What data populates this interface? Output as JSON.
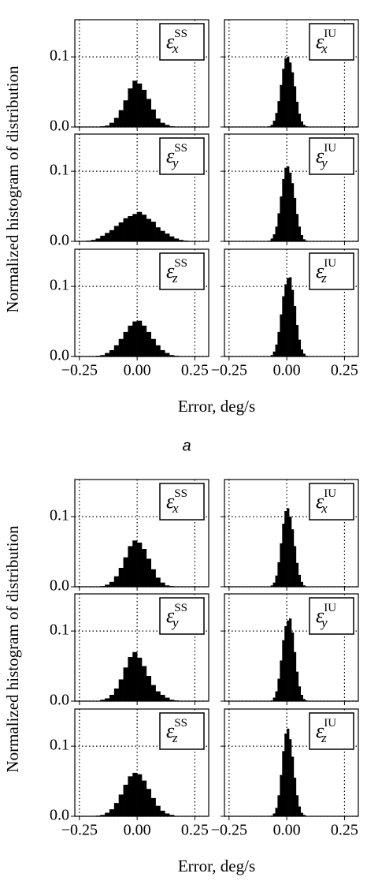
{
  "chart_data": [
    {
      "type": "histogram",
      "caption": "a",
      "xlabel": "Error, deg/s",
      "ylabel": "Normalized histogram of distribution",
      "xlim": [
        -0.27,
        0.31
      ],
      "ylim": [
        0,
        0.153
      ],
      "xticks": [
        {
          "value": -0.25,
          "label": "−0.25"
        },
        {
          "value": 0,
          "label": "0.00"
        },
        {
          "value": 0.25,
          "label": "0.25"
        }
      ],
      "yticks": [
        {
          "value": 0,
          "label": "0.0"
        },
        {
          "value": 0.1,
          "label": "0.1"
        }
      ],
      "grid": true,
      "color": "#000000",
      "panels": [
        {
          "label": {
            "base": "ε",
            "sub": "x",
            "sup": "SS"
          },
          "bins": [
            -0.24,
            -0.22,
            -0.2,
            -0.18,
            -0.16,
            -0.14,
            -0.12,
            -0.1,
            -0.08,
            -0.06,
            -0.04,
            -0.02,
            0,
            0.02,
            0.04,
            0.06,
            0.08,
            0.1,
            0.12,
            0.14,
            0.16,
            0.18,
            0.2,
            0.22,
            0.24
          ],
          "values": [
            0,
            0,
            0,
            0.0005,
            0.001,
            0.002,
            0.006,
            0.013,
            0.024,
            0.038,
            0.055,
            0.066,
            0.062,
            0.053,
            0.04,
            0.025,
            0.012,
            0.006,
            0.003,
            0.001,
            0.0005,
            0,
            0,
            0
          ]
        },
        {
          "label": {
            "base": "ε",
            "sub": "x",
            "sup": "IU"
          },
          "bins": [
            -0.1,
            -0.09,
            -0.08,
            -0.07,
            -0.06,
            -0.05,
            -0.04,
            -0.03,
            -0.02,
            -0.01,
            0,
            0.01,
            0.02,
            0.03,
            0.04,
            0.05,
            0.06,
            0.07,
            0.08,
            0.09,
            0.1
          ],
          "values": [
            0,
            0.0003,
            0.001,
            0.003,
            0.009,
            0.02,
            0.037,
            0.06,
            0.083,
            0.098,
            0.1,
            0.092,
            0.078,
            0.058,
            0.036,
            0.019,
            0.008,
            0.003,
            0.001,
            0.0003
          ]
        },
        {
          "label": {
            "base": "ε",
            "sub": "y",
            "sup": "SS"
          },
          "bins": [
            -0.24,
            -0.22,
            -0.2,
            -0.18,
            -0.16,
            -0.14,
            -0.12,
            -0.1,
            -0.08,
            -0.06,
            -0.04,
            -0.02,
            0,
            0.02,
            0.04,
            0.06,
            0.08,
            0.1,
            0.12,
            0.14,
            0.16,
            0.18,
            0.2,
            0.22,
            0.24
          ],
          "values": [
            0.0005,
            0.001,
            0.002,
            0.004,
            0.008,
            0.012,
            0.016,
            0.022,
            0.027,
            0.033,
            0.036,
            0.039,
            0.042,
            0.038,
            0.032,
            0.028,
            0.02,
            0.015,
            0.011,
            0.007,
            0.004,
            0.002,
            0.001,
            0.0005
          ]
        },
        {
          "label": {
            "base": "ε",
            "sub": "y",
            "sup": "IU"
          },
          "bins": [
            -0.1,
            -0.09,
            -0.08,
            -0.07,
            -0.06,
            -0.05,
            -0.04,
            -0.03,
            -0.02,
            -0.01,
            0,
            0.01,
            0.02,
            0.03,
            0.04,
            0.05,
            0.06,
            0.07,
            0.08,
            0.09,
            0.1
          ],
          "values": [
            0,
            0.0003,
            0.001,
            0.004,
            0.01,
            0.021,
            0.04,
            0.064,
            0.089,
            0.105,
            0.107,
            0.098,
            0.083,
            0.062,
            0.039,
            0.021,
            0.009,
            0.003,
            0.001,
            0.0003
          ]
        },
        {
          "label": {
            "base": "ε",
            "sub": "z",
            "sup": "SS"
          },
          "bins": [
            -0.24,
            -0.22,
            -0.2,
            -0.18,
            -0.16,
            -0.14,
            -0.12,
            -0.1,
            -0.08,
            -0.06,
            -0.04,
            -0.02,
            0,
            0.02,
            0.04,
            0.06,
            0.08,
            0.1,
            0.12,
            0.14,
            0.16,
            0.18,
            0.2,
            0.22,
            0.24
          ],
          "values": [
            0,
            0,
            0.0003,
            0.001,
            0.002,
            0.005,
            0.009,
            0.016,
            0.025,
            0.035,
            0.044,
            0.05,
            0.051,
            0.044,
            0.035,
            0.025,
            0.016,
            0.009,
            0.005,
            0.002,
            0.001,
            0.0003,
            0,
            0
          ]
        },
        {
          "label": {
            "base": "ε",
            "sub": "z",
            "sup": "IU"
          },
          "bins": [
            -0.1,
            -0.09,
            -0.08,
            -0.07,
            -0.06,
            -0.05,
            -0.04,
            -0.03,
            -0.02,
            -0.01,
            0,
            0.01,
            0.02,
            0.03,
            0.04,
            0.05,
            0.06,
            0.07,
            0.08,
            0.09,
            0.1
          ],
          "values": [
            0,
            0,
            0.0005,
            0.002,
            0.007,
            0.017,
            0.035,
            0.06,
            0.086,
            0.103,
            0.112,
            0.113,
            0.095,
            0.072,
            0.045,
            0.024,
            0.01,
            0.004,
            0.001,
            0.0003
          ]
        }
      ]
    },
    {
      "type": "histogram",
      "xlabel": "Error, deg/s",
      "ylabel": "Normalized histogram of distribution",
      "xlim": [
        -0.27,
        0.31
      ],
      "ylim": [
        0,
        0.153
      ],
      "xticks": [
        {
          "value": -0.25,
          "label": "−0.25"
        },
        {
          "value": 0,
          "label": "0.00"
        },
        {
          "value": 0.25,
          "label": "0.25"
        }
      ],
      "yticks": [
        {
          "value": 0,
          "label": "0.0"
        },
        {
          "value": 0.1,
          "label": "0.1"
        }
      ],
      "grid": true,
      "color": "#000000",
      "panels": [
        {
          "label": {
            "base": "ε",
            "sub": "x",
            "sup": "SS"
          },
          "bins": [
            -0.24,
            -0.22,
            -0.2,
            -0.18,
            -0.16,
            -0.14,
            -0.12,
            -0.1,
            -0.08,
            -0.06,
            -0.04,
            -0.02,
            0,
            0.02,
            0.04,
            0.06,
            0.08,
            0.1,
            0.12,
            0.14,
            0.16,
            0.18,
            0.2,
            0.22,
            0.24
          ],
          "values": [
            0,
            0,
            0,
            0.0003,
            0.001,
            0.003,
            0.007,
            0.015,
            0.027,
            0.042,
            0.058,
            0.066,
            0.063,
            0.054,
            0.04,
            0.025,
            0.013,
            0.006,
            0.002,
            0.001,
            0,
            0,
            0,
            0
          ]
        },
        {
          "label": {
            "base": "ε",
            "sub": "x",
            "sup": "IU"
          },
          "bins": [
            -0.1,
            -0.09,
            -0.08,
            -0.07,
            -0.06,
            -0.05,
            -0.04,
            -0.03,
            -0.02,
            -0.01,
            0,
            0.01,
            0.02,
            0.03,
            0.04,
            0.05,
            0.06,
            0.07,
            0.08,
            0.09,
            0.1
          ],
          "values": [
            0,
            0,
            0.0005,
            0.002,
            0.006,
            0.016,
            0.035,
            0.062,
            0.09,
            0.108,
            0.112,
            0.1,
            0.082,
            0.058,
            0.034,
            0.017,
            0.007,
            0.002,
            0.0005,
            0
          ]
        },
        {
          "label": {
            "base": "ε",
            "sub": "y",
            "sup": "SS"
          },
          "bins": [
            -0.24,
            -0.22,
            -0.2,
            -0.18,
            -0.16,
            -0.14,
            -0.12,
            -0.1,
            -0.08,
            -0.06,
            -0.04,
            -0.02,
            0,
            0.02,
            0.04,
            0.06,
            0.08,
            0.1,
            0.12,
            0.14,
            0.16,
            0.18,
            0.2,
            0.22,
            0.24
          ],
          "values": [
            0,
            0,
            0,
            0.0005,
            0.002,
            0.004,
            0.009,
            0.018,
            0.031,
            0.048,
            0.063,
            0.07,
            0.062,
            0.05,
            0.036,
            0.023,
            0.014,
            0.009,
            0.005,
            0.002,
            0.001,
            0,
            0,
            0
          ]
        },
        {
          "label": {
            "base": "ε",
            "sub": "y",
            "sup": "IU"
          },
          "bins": [
            -0.1,
            -0.09,
            -0.08,
            -0.07,
            -0.06,
            -0.05,
            -0.04,
            -0.03,
            -0.02,
            -0.01,
            0,
            0.01,
            0.02,
            0.03,
            0.04,
            0.05,
            0.06,
            0.07,
            0.08,
            0.09,
            0.1
          ],
          "values": [
            0,
            0,
            0.0003,
            0.001,
            0.005,
            0.014,
            0.032,
            0.058,
            0.087,
            0.107,
            0.115,
            0.118,
            0.098,
            0.07,
            0.042,
            0.021,
            0.009,
            0.003,
            0.001,
            0
          ]
        },
        {
          "label": {
            "base": "ε",
            "sub": "z",
            "sup": "SS"
          },
          "bins": [
            -0.24,
            -0.22,
            -0.2,
            -0.18,
            -0.16,
            -0.14,
            -0.12,
            -0.1,
            -0.08,
            -0.06,
            -0.04,
            -0.02,
            0,
            0.02,
            0.04,
            0.06,
            0.08,
            0.1,
            0.12,
            0.14,
            0.16,
            0.18,
            0.2,
            0.22,
            0.24
          ],
          "values": [
            0,
            0,
            0.0003,
            0.001,
            0.002,
            0.005,
            0.01,
            0.019,
            0.031,
            0.045,
            0.057,
            0.062,
            0.06,
            0.051,
            0.039,
            0.026,
            0.015,
            0.008,
            0.004,
            0.002,
            0.0005,
            0,
            0,
            0
          ]
        },
        {
          "label": {
            "base": "ε",
            "sub": "z",
            "sup": "IU"
          },
          "bins": [
            -0.1,
            -0.09,
            -0.08,
            -0.07,
            -0.06,
            -0.05,
            -0.04,
            -0.03,
            -0.02,
            -0.01,
            0,
            0.01,
            0.02,
            0.03,
            0.04,
            0.05,
            0.06,
            0.07,
            0.08,
            0.09,
            0.1
          ],
          "values": [
            0,
            0,
            0.0003,
            0.001,
            0.004,
            0.012,
            0.03,
            0.059,
            0.093,
            0.118,
            0.125,
            0.11,
            0.085,
            0.055,
            0.03,
            0.014,
            0.005,
            0.002,
            0.0005,
            0
          ]
        }
      ]
    }
  ]
}
